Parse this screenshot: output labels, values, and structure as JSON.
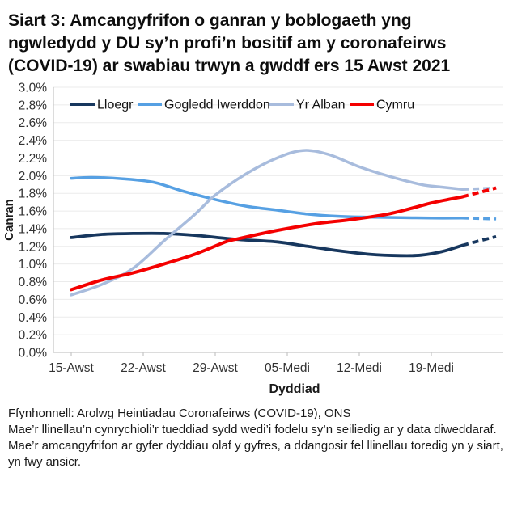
{
  "title": "Siart 3: Amcangyfrifon o ganran y boblogaeth yng ngwledydd y DU sy’n profi’n bositif am y coronafeirws (COVID-19) ar swabiau trwyn a gwddf ers 15 Awst 2021",
  "chart_data": {
    "type": "line",
    "x_axis": {
      "label": "Dyddiad",
      "domain_days": [
        0,
        42
      ],
      "ticks": [
        {
          "day": 0,
          "label": "15-Awst"
        },
        {
          "day": 7,
          "label": "22-Awst"
        },
        {
          "day": 14,
          "label": "29-Awst"
        },
        {
          "day": 21,
          "label": "05-Medi"
        },
        {
          "day": 28,
          "label": "12-Medi"
        },
        {
          "day": 35,
          "label": "19-Medi"
        }
      ]
    },
    "y_axis": {
      "label": "Canran",
      "min": 0,
      "max": 3,
      "step": 0.2,
      "tick_labels": [
        "0.0%",
        "0.2%",
        "0.4%",
        "0.6%",
        "0.8%",
        "1.0%",
        "1.2%",
        "1.4%",
        "1.6%",
        "1.8%",
        "2.0%",
        "2.2%",
        "2.4%",
        "2.6%",
        "2.8%",
        "3.0%"
      ]
    },
    "grid": true,
    "legend_position": "top-inside",
    "dashed_note": "llinellau toredig = dyddiau olaf y gyfres (mwy ansicr)",
    "series": [
      {
        "name": "Lloegr",
        "color": "#17375e",
        "solid": [
          [
            0,
            1.3
          ],
          [
            3,
            1.335
          ],
          [
            6,
            1.345
          ],
          [
            9,
            1.345
          ],
          [
            12,
            1.325
          ],
          [
            16,
            1.28
          ],
          [
            20,
            1.25
          ],
          [
            23,
            1.2
          ],
          [
            26,
            1.15
          ],
          [
            29,
            1.11
          ],
          [
            32,
            1.095
          ],
          [
            34,
            1.1
          ],
          [
            36,
            1.14
          ],
          [
            38,
            1.21
          ]
        ],
        "dashed": [
          [
            38,
            1.21
          ],
          [
            39.6,
            1.26
          ],
          [
            41.3,
            1.31
          ]
        ]
      },
      {
        "name": "Gogledd Iwerddon",
        "color": "#56a0e3",
        "solid": [
          [
            0,
            1.97
          ],
          [
            2,
            1.98
          ],
          [
            5,
            1.965
          ],
          [
            8,
            1.925
          ],
          [
            11,
            1.82
          ],
          [
            14,
            1.73
          ],
          [
            17,
            1.655
          ],
          [
            20,
            1.61
          ],
          [
            23,
            1.565
          ],
          [
            26,
            1.54
          ],
          [
            29,
            1.53
          ],
          [
            32,
            1.525
          ],
          [
            35,
            1.52
          ],
          [
            38,
            1.52
          ]
        ],
        "dashed": [
          [
            38,
            1.52
          ],
          [
            41.3,
            1.51
          ]
        ]
      },
      {
        "name": "Yr Alban",
        "color": "#a8bcdd",
        "solid": [
          [
            0,
            0.65
          ],
          [
            3,
            0.77
          ],
          [
            6,
            0.95
          ],
          [
            9,
            1.26
          ],
          [
            12,
            1.56
          ],
          [
            14,
            1.78
          ],
          [
            17,
            2.02
          ],
          [
            20,
            2.2
          ],
          [
            22.5,
            2.285
          ],
          [
            25,
            2.24
          ],
          [
            28,
            2.1
          ],
          [
            31,
            1.99
          ],
          [
            34,
            1.9
          ],
          [
            36,
            1.87
          ],
          [
            38,
            1.845
          ]
        ],
        "dashed": [
          [
            38,
            1.845
          ],
          [
            41.3,
            1.86
          ]
        ]
      },
      {
        "name": "Cymru",
        "color": "#f40000",
        "solid": [
          [
            0,
            0.71
          ],
          [
            3,
            0.82
          ],
          [
            6,
            0.9
          ],
          [
            9,
            1.0
          ],
          [
            12,
            1.11
          ],
          [
            15,
            1.25
          ],
          [
            16,
            1.28
          ],
          [
            20,
            1.38
          ],
          [
            24,
            1.46
          ],
          [
            27,
            1.5
          ],
          [
            31,
            1.57
          ],
          [
            35,
            1.69
          ],
          [
            38,
            1.76
          ]
        ],
        "dashed": [
          [
            38,
            1.76
          ],
          [
            41.3,
            1.86
          ]
        ]
      }
    ]
  },
  "footer": {
    "source": "Ffynhonnell: Arolwg Heintiadau Coronafeirws (COVID-19), ONS",
    "note": "Mae’r llinellau’n cynrychioli’r tueddiad sydd wedi’i fodelu sy’n seiliedig ar y data diweddaraf. Mae’r amcangyfrifon ar gyfer dyddiau olaf y gyfres, a ddangosir fel llinellau toredig yn y siart, yn fwy ansicr."
  },
  "style_colors": {
    "grid": "#ebebeb",
    "axis": "#c8c8c8",
    "tick_text": "#333333",
    "axis_title_text": "#1a1a1a",
    "legend_text": "#111111"
  }
}
